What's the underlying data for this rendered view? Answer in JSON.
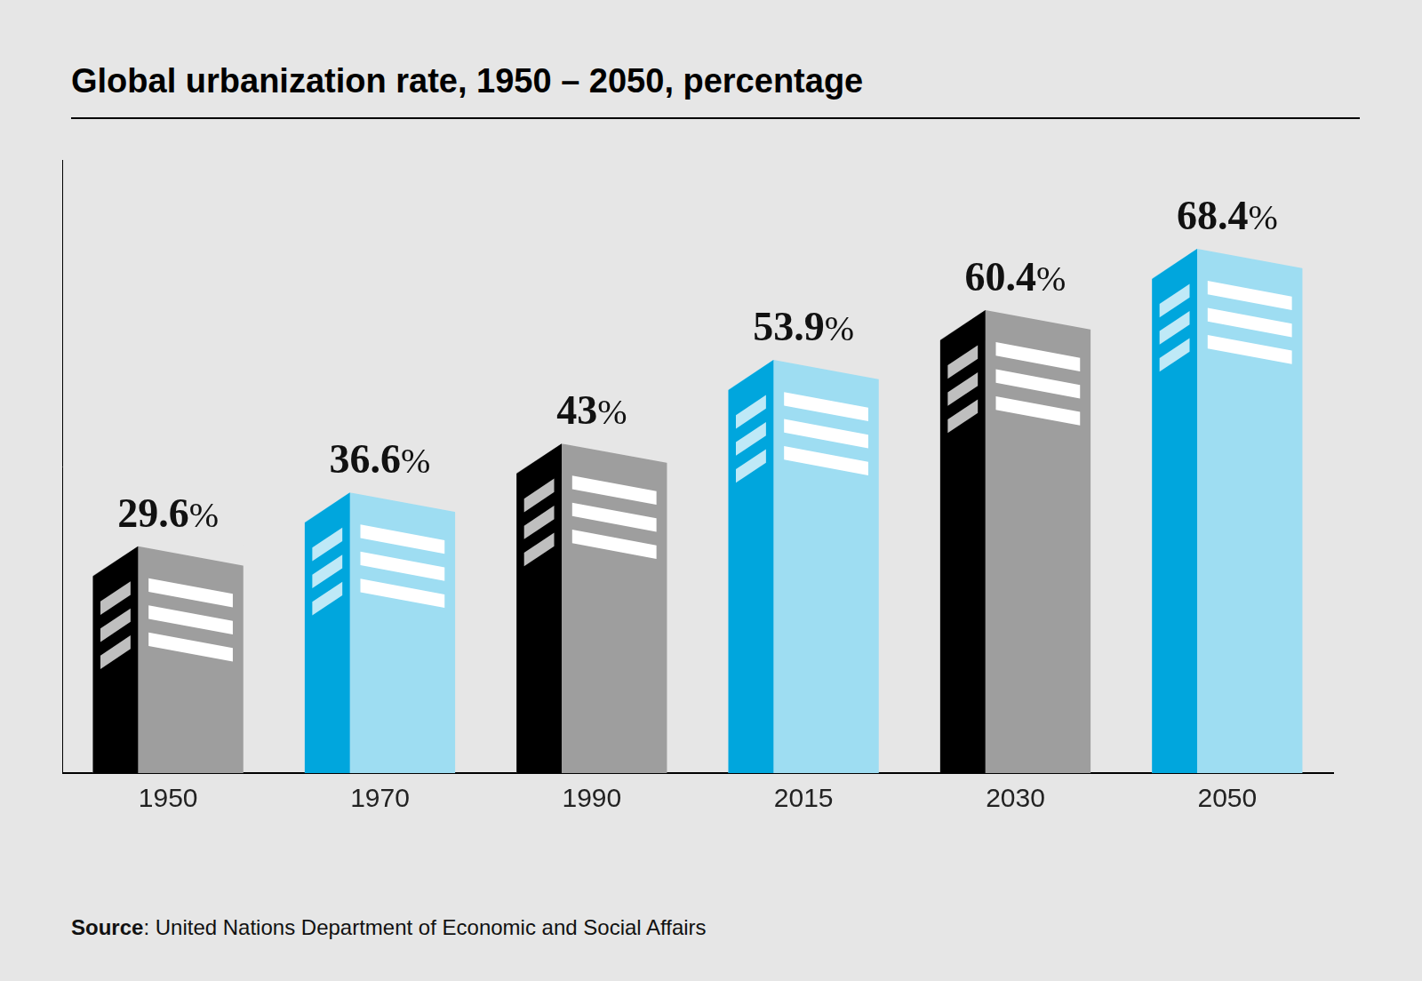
{
  "chart_data": {
    "type": "bar",
    "title": "Global urbanization rate, 1950 – 2050, percentage",
    "categories": [
      "1950",
      "1970",
      "1990",
      "2015",
      "2030",
      "2050"
    ],
    "values": [
      29.6,
      36.6,
      43,
      53.9,
      60.4,
      68.4
    ],
    "value_labels": [
      "29.6%",
      "36.6%",
      "43%",
      "53.9%",
      "60.4%",
      "68.4%"
    ],
    "colors": [
      "#000000",
      "#00a6dd",
      "#000000",
      "#00a6dd",
      "#000000",
      "#00a6dd"
    ],
    "ylim": [
      0,
      80
    ],
    "grid": false,
    "data_labels": true,
    "tick_labels": "x",
    "source": "Source: United Nations Department of Economic and Social Affairs"
  }
}
